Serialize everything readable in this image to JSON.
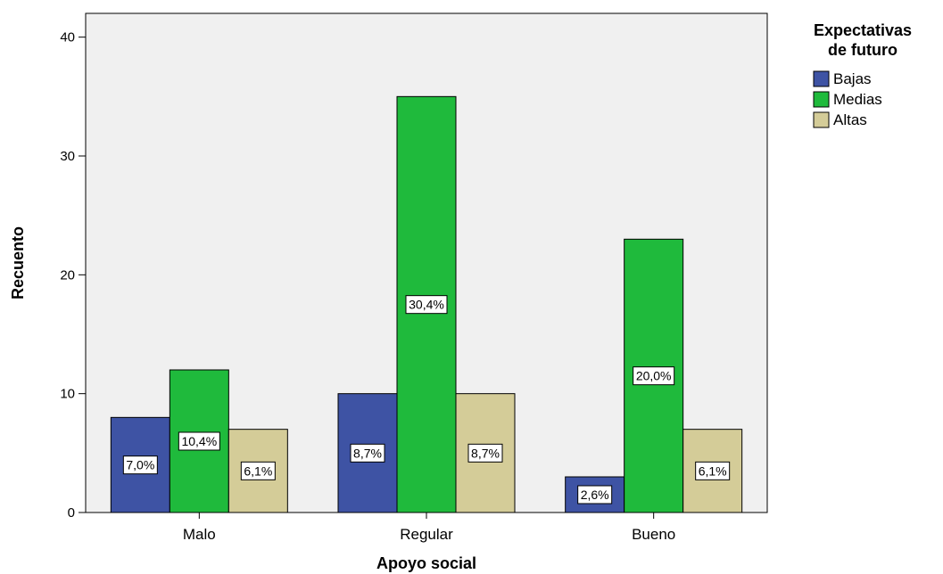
{
  "chart_data": {
    "type": "bar",
    "title": "",
    "xlabel": "Apoyo social",
    "ylabel": "Recuento",
    "ylim": [
      0,
      42
    ],
    "yticks": [
      0,
      10,
      20,
      30,
      40
    ],
    "grid": false,
    "legend_placement": "right",
    "legend_title_lines": [
      "Expectativas",
      "de futuro"
    ],
    "plot_background": "#f0f0f0",
    "categories": [
      "Malo",
      "Regular",
      "Bueno"
    ],
    "series": [
      {
        "name": "Bajas",
        "color": "#3e53a4",
        "values": [
          8,
          10,
          3
        ],
        "labels": [
          "7,0%",
          "8,7%",
          "2,6%"
        ]
      },
      {
        "name": "Medias",
        "color": "#1fba3c",
        "values": [
          12,
          35,
          23
        ],
        "labels": [
          "10,4%",
          "30,4%",
          "20,0%"
        ]
      },
      {
        "name": "Altas",
        "color": "#d4cc98",
        "values": [
          7,
          10,
          7
        ],
        "labels": [
          "6,1%",
          "8,7%",
          "6,1%"
        ]
      }
    ]
  }
}
